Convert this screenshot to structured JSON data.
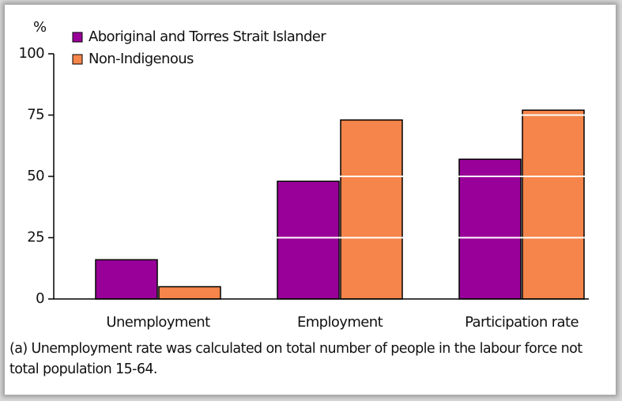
{
  "chart_data": {
    "type": "bar",
    "y_unit": "%",
    "categories": [
      "Unemployment",
      "Employment",
      "Participation rate"
    ],
    "series": [
      {
        "name": "Aboriginal and Torres Strait Islander",
        "color": "#990099",
        "values": [
          16,
          48,
          57
        ]
      },
      {
        "name": "Non-Indigenous",
        "color": "#f5854a",
        "values": [
          5,
          73,
          77
        ]
      }
    ],
    "ylim": [
      0,
      100
    ],
    "yticks": [
      0,
      25,
      50,
      75,
      100
    ],
    "grid": true,
    "grid_color": "#ffffff",
    "legend": "top-left",
    "footnote": "(a) Unemployment rate was calculated on total number of people in the labour force not total population 15-64."
  }
}
